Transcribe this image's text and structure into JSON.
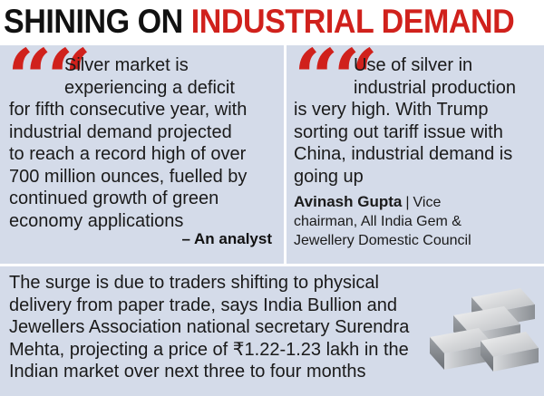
{
  "headline": {
    "part1": "SHINING ON ",
    "part2": "INDUSTRIAL DEMAND"
  },
  "left_quote": {
    "mark": "“",
    "lines_first": [
      "Silver market is",
      "experiencing a deficit"
    ],
    "lines_rest": [
      "for fifth consecutive year, with",
      "industrial demand projected",
      "to reach a record high of over",
      "700 million ounces, fuelled by",
      "continued growth of green",
      "economy applications"
    ],
    "attribution": "– An analyst"
  },
  "right_quote": {
    "mark": "“",
    "lines_first": [
      "Use of silver in",
      "industrial production"
    ],
    "lines_rest": [
      "is very high. With Trump",
      "sorting out tariff issue with",
      "China, industrial demand is",
      "going up"
    ],
    "attribution_name": "Avinash Gupta",
    "attribution_separator": "|",
    "attribution_title_line1": "Vice",
    "attribution_title_line2": "chairman, All India Gem &",
    "attribution_title_line3": "Jewellery Domestic Council"
  },
  "bottom": {
    "lines": [
      "The surge is due to traders shifting to physical",
      "delivery from paper trade, says India Bullion and",
      "Jewellers Association national secretary Surendra",
      "Mehta, projecting a price of ₹1.22-1.23 lakh in the",
      "Indian market over next three to four months"
    ],
    "image": "silver-bars-icon"
  },
  "colors": {
    "accent_red": "#d0211c",
    "panel_bg": "#d4dbe9",
    "text": "#1a1a1a"
  }
}
